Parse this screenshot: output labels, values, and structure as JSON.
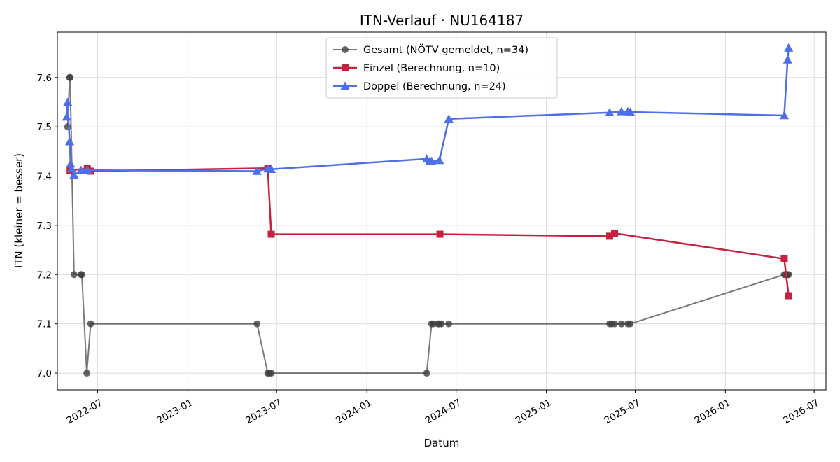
{
  "chart_data": {
    "type": "line",
    "title": "ITN-Verlauf · NU164187",
    "xlabel": "Datum",
    "ylabel": "ITN  (kleiner = besser)",
    "x_axis": "date",
    "xlim": [
      "2022-04-10",
      "2026-07-25"
    ],
    "ylim": [
      6.966,
      7.692
    ],
    "x_ticks": [
      "2022-07",
      "2023-01",
      "2023-07",
      "2024-01",
      "2024-07",
      "2025-01",
      "2025-07",
      "2026-01",
      "2026-07"
    ],
    "y_ticks": [
      "7.0",
      "7.1",
      "7.2",
      "7.3",
      "7.4",
      "7.5",
      "7.6"
    ],
    "grid": true,
    "legend": "top-center",
    "series": [
      {
        "name": "Gesamt (NÖTV gemeldet, n=34)",
        "color": "#404040",
        "marker": "circle",
        "points": [
          {
            "x": "2022-05-01",
            "y": 7.5
          },
          {
            "x": "2022-05-05",
            "y": 7.6
          },
          {
            "x": "2022-05-06",
            "y": 7.6
          },
          {
            "x": "2022-05-14",
            "y": 7.2
          },
          {
            "x": "2022-05-28",
            "y": 7.2
          },
          {
            "x": "2022-05-30",
            "y": 7.2
          },
          {
            "x": "2022-06-09",
            "y": 7.0
          },
          {
            "x": "2022-06-17",
            "y": 7.1
          },
          {
            "x": "2023-05-22",
            "y": 7.1
          },
          {
            "x": "2023-06-13",
            "y": 7.0
          },
          {
            "x": "2023-06-16",
            "y": 7.0
          },
          {
            "x": "2023-06-20",
            "y": 7.0
          },
          {
            "x": "2024-05-02",
            "y": 7.0
          },
          {
            "x": "2024-05-12",
            "y": 7.1
          },
          {
            "x": "2024-05-15",
            "y": 7.1
          },
          {
            "x": "2024-05-25",
            "y": 7.1
          },
          {
            "x": "2024-05-28",
            "y": 7.1
          },
          {
            "x": "2024-06-01",
            "y": 7.1
          },
          {
            "x": "2024-06-16",
            "y": 7.1
          },
          {
            "x": "2025-05-10",
            "y": 7.1
          },
          {
            "x": "2025-05-14",
            "y": 7.1
          },
          {
            "x": "2025-05-20",
            "y": 7.1
          },
          {
            "x": "2025-06-03",
            "y": 7.1
          },
          {
            "x": "2025-06-16",
            "y": 7.1
          },
          {
            "x": "2025-06-21",
            "y": 7.1
          },
          {
            "x": "2026-05-01",
            "y": 7.2
          },
          {
            "x": "2026-05-05",
            "y": 7.2
          },
          {
            "x": "2026-05-08",
            "y": 7.2
          },
          {
            "x": "2026-05-10",
            "y": 7.2
          }
        ]
      },
      {
        "name": "Einzel (Berechnung, n=10)",
        "color": "#c8203f",
        "marker": "square",
        "points": [
          {
            "x": "2022-05-06",
            "y": 7.412
          },
          {
            "x": "2022-06-10",
            "y": 7.415
          },
          {
            "x": "2022-06-17",
            "y": 7.41
          },
          {
            "x": "2023-06-13",
            "y": 7.416
          },
          {
            "x": "2023-06-20",
            "y": 7.282
          },
          {
            "x": "2024-05-29",
            "y": 7.282
          },
          {
            "x": "2025-05-10",
            "y": 7.278
          },
          {
            "x": "2025-05-20",
            "y": 7.284
          },
          {
            "x": "2026-05-01",
            "y": 7.232
          },
          {
            "x": "2026-05-10",
            "y": 7.157
          }
        ]
      },
      {
        "name": "Doppel (Berechnung, n=24)",
        "color": "#4f6fe8",
        "marker": "triangle",
        "points": [
          {
            "x": "2022-04-29",
            "y": 7.52
          },
          {
            "x": "2022-05-01",
            "y": 7.55
          },
          {
            "x": "2022-05-05",
            "y": 7.47
          },
          {
            "x": "2022-05-07",
            "y": 7.425
          },
          {
            "x": "2022-05-09",
            "y": 7.415
          },
          {
            "x": "2022-05-14",
            "y": 7.402
          },
          {
            "x": "2022-05-28",
            "y": 7.412
          },
          {
            "x": "2022-06-10",
            "y": 7.412
          },
          {
            "x": "2023-05-22",
            "y": 7.41
          },
          {
            "x": "2023-06-13",
            "y": 7.415
          },
          {
            "x": "2023-06-20",
            "y": 7.414
          },
          {
            "x": "2024-05-02",
            "y": 7.435
          },
          {
            "x": "2024-05-08",
            "y": 7.43
          },
          {
            "x": "2024-05-12",
            "y": 7.43
          },
          {
            "x": "2024-05-28",
            "y": 7.432
          },
          {
            "x": "2024-06-16",
            "y": 7.516
          },
          {
            "x": "2025-05-10",
            "y": 7.529
          },
          {
            "x": "2025-06-03",
            "y": 7.531
          },
          {
            "x": "2025-06-16",
            "y": 7.531
          },
          {
            "x": "2025-06-21",
            "y": 7.53
          },
          {
            "x": "2026-05-01",
            "y": 7.523
          },
          {
            "x": "2026-05-08",
            "y": 7.636
          },
          {
            "x": "2026-05-10",
            "y": 7.66
          }
        ]
      }
    ]
  }
}
